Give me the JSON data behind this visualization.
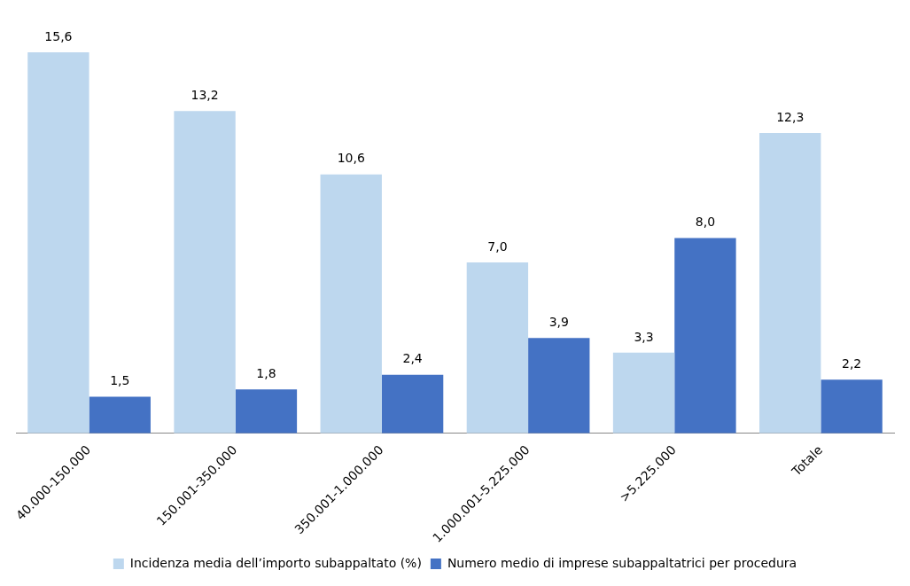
{
  "chart_data": {
    "type": "bar",
    "categories": [
      "40.000-150.000",
      "150.001-350.000",
      "350.001-1.000.000",
      "1.000.001-5.225.000",
      ">5.225.000",
      "Totale"
    ],
    "series": [
      {
        "name": "Incidenza media dell’importo subappaltato (%)",
        "color": "#bdd7ee",
        "values": [
          15.6,
          13.2,
          10.6,
          7.0,
          3.3,
          12.3
        ],
        "value_labels": [
          "15,6",
          "13,2",
          "10,6",
          "7,0",
          "3,3",
          "12,3"
        ]
      },
      {
        "name": "Numero medio di imprese subappaltatrici per procedura",
        "color": "#4472c4",
        "values": [
          1.5,
          1.8,
          2.4,
          3.9,
          8.0,
          2.2
        ],
        "value_labels": [
          "1,5",
          "1,8",
          "2,4",
          "3,9",
          "8,0",
          "2,2"
        ]
      }
    ],
    "grid": false,
    "legend": "bottom"
  }
}
